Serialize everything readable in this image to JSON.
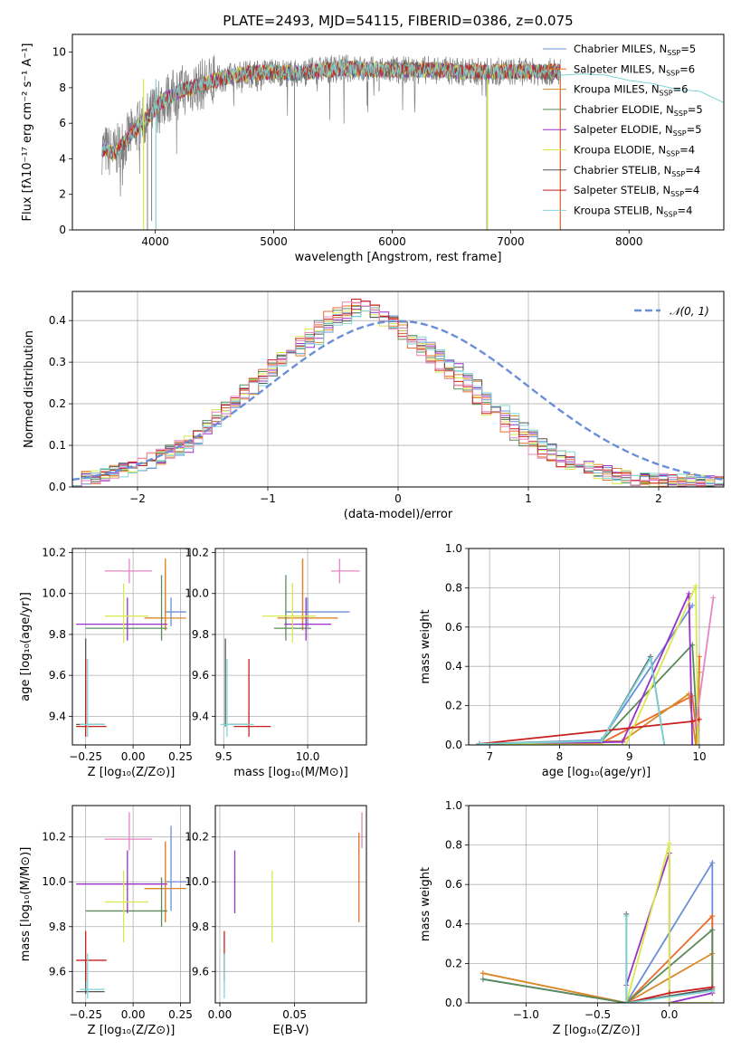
{
  "title": "PLATE=2493, MJD=54115, FIBERID=0386, z=0.075",
  "colors": {
    "chabrier_miles": "#6a8fd8",
    "salpeter_miles": "#e86c2a",
    "kroupa_miles": "#d98a2b",
    "chabrier_elodie": "#5b8a5b",
    "salpeter_elodie": "#9b30c8",
    "kroupa_elodie": "#d9e84a",
    "chabrier_stelib": "#555555",
    "salpeter_stelib": "#c81e1e",
    "kroupa_stelib": "#7fd6d6",
    "data_gray": "#808080",
    "pink": "#e586c0",
    "normal_curve": "#6a8fd8",
    "grid": "#b0b0b0"
  },
  "chart_data": [
    {
      "id": "spectrum",
      "type": "line",
      "xlabel": "wavelength [Angstrom, rest frame]",
      "ylabel": "Flux [fλ10⁻¹⁷ erg cm⁻² s⁻¹ A⁻¹]",
      "xlim": [
        3300,
        8800
      ],
      "ylim": [
        0,
        11
      ],
      "xticks": [
        4000,
        5000,
        6000,
        7000,
        8000
      ],
      "yticks": [
        0,
        2,
        4,
        6,
        8,
        10
      ],
      "legend_position": "top-right",
      "legend": [
        {
          "label": "Chabrier MILES, N_SSP=5",
          "color": "#6a8fd8"
        },
        {
          "label": "Salpeter MILES, N_SSP=6",
          "color": "#e86c2a"
        },
        {
          "label": "Kroupa MILES, N_SSP=6",
          "color": "#d98a2b"
        },
        {
          "label": "Chabrier ELODIE, N_SSP=5",
          "color": "#5b8a5b"
        },
        {
          "label": "Salpeter ELODIE, N_SSP=5",
          "color": "#9b30c8"
        },
        {
          "label": "Kroupa ELODIE, N_SSP=4",
          "color": "#d9e84a"
        },
        {
          "label": "Chabrier STELIB, N_SSP=4",
          "color": "#555555"
        },
        {
          "label": "Salpeter STELIB, N_SSP=4",
          "color": "#c81e1e"
        },
        {
          "label": "Kroupa STELIB, N_SSP=4",
          "color": "#7fd6d6"
        }
      ],
      "continuum": [
        [
          3550,
          4.6
        ],
        [
          3650,
          4.3
        ],
        [
          3750,
          5.0
        ],
        [
          3850,
          5.8
        ],
        [
          3950,
          6.4
        ],
        [
          4050,
          7.2
        ],
        [
          4200,
          7.8
        ],
        [
          4400,
          8.2
        ],
        [
          4600,
          8.6
        ],
        [
          4800,
          8.8
        ],
        [
          5000,
          8.9
        ],
        [
          5200,
          8.8
        ],
        [
          5400,
          9.0
        ],
        [
          5600,
          9.1
        ],
        [
          5800,
          9.0
        ],
        [
          6000,
          9.0
        ],
        [
          6200,
          9.0
        ],
        [
          6400,
          9.0
        ],
        [
          6600,
          8.9
        ],
        [
          6800,
          8.9
        ],
        [
          7000,
          8.9
        ],
        [
          7200,
          8.9
        ],
        [
          7420,
          8.9
        ]
      ],
      "kroupa_stelib_extension": [
        [
          7420,
          8.9
        ],
        [
          7600,
          8.8
        ],
        [
          7800,
          8.7
        ],
        [
          8000,
          8.5
        ],
        [
          8200,
          8.1
        ],
        [
          8400,
          7.8
        ],
        [
          8600,
          7.6
        ],
        [
          8800,
          7.2
        ]
      ],
      "absorption_lines": [
        [
          3934,
          0
        ],
        [
          3969,
          0.5
        ],
        [
          4340,
          7.6
        ],
        [
          4861,
          7.8
        ],
        [
          5175,
          0
        ],
        [
          5270,
          8.2
        ],
        [
          5890,
          7.8
        ],
        [
          6563,
          8.2
        ],
        [
          6800,
          0
        ],
        [
          7420,
          0
        ]
      ]
    },
    {
      "id": "residuals",
      "type": "histogram",
      "xlabel": "(data-model)/error",
      "ylabel": "Normed distribution",
      "xlim": [
        -2.5,
        2.5
      ],
      "ylim": [
        0,
        0.47
      ],
      "xticks": [
        -2,
        -1,
        0,
        1,
        2
      ],
      "yticks": [
        0.0,
        0.1,
        0.2,
        0.3,
        0.4
      ],
      "legend_position": "top-right",
      "normal_label": "𝒩(0, 1)",
      "bin_width": 0.1,
      "bins_from": -2.5,
      "series_values": [
        [
          0.02,
          0.022,
          0.025,
          0.03,
          0.035,
          0.04,
          0.048,
          0.055,
          0.06,
          0.07,
          0.08,
          0.09,
          0.1,
          0.12,
          0.14,
          0.16,
          0.18,
          0.2,
          0.22,
          0.24,
          0.25,
          0.28,
          0.3,
          0.31,
          0.33,
          0.35,
          0.36,
          0.38,
          0.4,
          0.41,
          0.42,
          0.43,
          0.42,
          0.41,
          0.4,
          0.38,
          0.36,
          0.35,
          0.34,
          0.32,
          0.3,
          0.28,
          0.26,
          0.24,
          0.22,
          0.2,
          0.18,
          0.16,
          0.14,
          0.12,
          0.1,
          0.09,
          0.08,
          0.07,
          0.06,
          0.05,
          0.04,
          0.035,
          0.03,
          0.025,
          0.02,
          0.02,
          0.018,
          0.016,
          0.015,
          0.014,
          0.013,
          0.012,
          0.012,
          0.011
        ],
        [
          0.018,
          0.02,
          0.026,
          0.03,
          0.036,
          0.044,
          0.05,
          0.058,
          0.07,
          0.078,
          0.085,
          0.1,
          0.11,
          0.125,
          0.15,
          0.17,
          0.19,
          0.21,
          0.23,
          0.26,
          0.27,
          0.29,
          0.31,
          0.33,
          0.35,
          0.37,
          0.39,
          0.41,
          0.42,
          0.43,
          0.44,
          0.43,
          0.42,
          0.4,
          0.39,
          0.37,
          0.35,
          0.33,
          0.31,
          0.29,
          0.27,
          0.25,
          0.23,
          0.21,
          0.19,
          0.17,
          0.15,
          0.13,
          0.11,
          0.095,
          0.085,
          0.075,
          0.065,
          0.055,
          0.045,
          0.04,
          0.034,
          0.03,
          0.025,
          0.022,
          0.02,
          0.018,
          0.016,
          0.015,
          0.014,
          0.013,
          0.012,
          0.011,
          0.011,
          0.01
        ]
      ]
    },
    {
      "id": "age_vs_Z",
      "type": "scatter",
      "xlabel": "Z [log₁₀(Z/Z⊙)]",
      "ylabel": "age  [log₁₀(age/yr)]",
      "xlim": [
        -0.32,
        0.3
      ],
      "ylim": [
        9.26,
        10.22
      ],
      "xticks": [
        -0.25,
        0.0,
        0.25
      ],
      "yticks": [
        9.4,
        9.6,
        9.8,
        10.0,
        10.2
      ]
    },
    {
      "id": "age_vs_mass",
      "type": "scatter",
      "xlabel": "mass [log₁₀(M/M⊙)]",
      "xlim": [
        9.45,
        10.35
      ],
      "ylim": [
        9.26,
        10.22
      ],
      "xticks": [
        9.5,
        10.0
      ],
      "yticks": [
        9.4,
        9.6,
        9.8,
        10.0,
        10.2
      ]
    },
    {
      "id": "weight_vs_age",
      "type": "line",
      "xlabel": "age  [log₁₀(age/yr)]",
      "ylabel": "mass weight",
      "xlim": [
        6.7,
        10.35
      ],
      "ylim": [
        0,
        1.0
      ],
      "xticks": [
        7,
        8,
        9,
        10
      ],
      "yticks": [
        0.0,
        0.2,
        0.4,
        0.6,
        0.8,
        1.0
      ]
    },
    {
      "id": "mass_vs_Z",
      "type": "scatter",
      "xlabel": "Z [log₁₀(Z/Z⊙)]",
      "ylabel": "mass [log₁₀(M/M⊙)]",
      "xlim": [
        -0.32,
        0.3
      ],
      "ylim": [
        9.46,
        10.34
      ],
      "xticks": [
        -0.25,
        0.0,
        0.25
      ],
      "yticks": [
        9.6,
        9.8,
        10.0,
        10.2
      ]
    },
    {
      "id": "mass_vs_ebv",
      "type": "scatter",
      "xlabel": "E(B-V)",
      "xlim": [
        -0.003,
        0.098
      ],
      "ylim": [
        9.46,
        10.34
      ],
      "xticks": [
        0.0,
        0.05
      ],
      "yticks": [
        9.6,
        9.8,
        10.0,
        10.2
      ]
    },
    {
      "id": "weight_vs_Z",
      "type": "line",
      "xlabel": "Z [log₁₀(Z/Z⊙)]",
      "ylabel": "mass weight",
      "xlim": [
        -1.4,
        0.38
      ],
      "ylim": [
        0,
        1.0
      ],
      "xticks": [
        -1.0,
        -0.5,
        0.0
      ],
      "yticks": [
        0.0,
        0.2,
        0.4,
        0.6,
        0.8,
        1.0
      ]
    }
  ],
  "ssp_models": [
    {
      "name": "chabrier_miles",
      "Z": 0.2,
      "Zerr": [
        0.17,
        0.28
      ],
      "age": 9.91,
      "ageErr": [
        9.84,
        9.98
      ],
      "mass": 10.0,
      "massErr": [
        9.87,
        10.25
      ],
      "ebv": null,
      "age_weights": [
        [
          6.85,
          0.005
        ],
        [
          8.6,
          0.025
        ],
        [
          9.9,
          0.71
        ]
      ],
      "Z_weights": [
        [
          -1.3,
          0.12
        ],
        [
          -0.3,
          0.0
        ],
        [
          0.3,
          0.71
        ],
        [
          0.3,
          0.06
        ]
      ]
    },
    {
      "name": "salpeter_miles",
      "Z": 0.17,
      "Zerr": [
        0.06,
        0.17
      ],
      "age": 9.88,
      "ageErr": [
        9.82,
        10.17
      ],
      "mass": 9.97,
      "massErr": [
        9.82,
        10.18
      ],
      "ebv": 0.093,
      "ebvErr": [
        9.82,
        10.22
      ],
      "age_weights": [
        [
          6.85,
          0.005
        ],
        [
          8.6,
          0.01
        ],
        [
          9.9,
          0.25
        ],
        [
          9.98,
          0.0
        ],
        [
          10.0,
          0.45
        ]
      ],
      "Z_weights": [
        [
          -1.3,
          0.15
        ],
        [
          -0.3,
          0.0
        ],
        [
          0.3,
          0.44
        ],
        [
          0.3,
          0.05
        ]
      ]
    },
    {
      "name": "kroupa_miles",
      "Z": 0.17,
      "Zerr": [
        0.06,
        0.28
      ],
      "age": 9.88,
      "ageErr": [
        9.82,
        10.17
      ],
      "mass": 9.97,
      "massErr": [
        9.82,
        10.15
      ],
      "ebv": null,
      "age_weights": [
        [
          6.85,
          0.005
        ],
        [
          8.9,
          0.02
        ],
        [
          9.85,
          0.26
        ],
        [
          9.95,
          0.0
        ],
        [
          10.0,
          0.37
        ]
      ],
      "Z_weights": [
        [
          -1.3,
          0.15
        ],
        [
          -0.3,
          0.0
        ],
        [
          0.3,
          0.25
        ],
        [
          0.3,
          0.05
        ]
      ]
    },
    {
      "name": "chabrier_elodie",
      "Z": 0.15,
      "Zerr": [
        -0.25,
        0.18
      ],
      "age": 9.83,
      "ageErr": [
        9.77,
        10.09
      ],
      "mass": 9.87,
      "massErr": [
        9.8,
        10.02
      ],
      "ebv": null,
      "age_weights": [
        [
          6.85,
          0.005
        ],
        [
          8.6,
          0.02
        ],
        [
          9.9,
          0.51
        ],
        [
          9.98,
          0.0
        ]
      ],
      "Z_weights": [
        [
          -1.3,
          0.12
        ],
        [
          -0.3,
          0.0
        ],
        [
          0.3,
          0.37
        ],
        [
          0.3,
          0.06
        ]
      ]
    },
    {
      "name": "salpeter_elodie",
      "Z": -0.03,
      "Zerr": [
        -0.3,
        0.18
      ],
      "age": 9.85,
      "ageErr": [
        9.77,
        9.98
      ],
      "mass": 9.99,
      "massErr": [
        9.86,
        10.14
      ],
      "ebv": 0.01,
      "ebvErr": [
        9.86,
        10.14
      ],
      "age_weights": [
        [
          6.85,
          0.005
        ],
        [
          8.9,
          0.015
        ],
        [
          9.85,
          0.77
        ],
        [
          9.9,
          0.0
        ]
      ],
      "Z_weights": [
        [
          -0.3,
          0.09
        ],
        [
          0.0,
          0.76
        ],
        [
          0.0,
          0.0
        ],
        [
          0.3,
          0.05
        ]
      ]
    },
    {
      "name": "kroupa_elodie",
      "Z": -0.05,
      "Zerr": [
        -0.15,
        0.08
      ],
      "age": 9.89,
      "ageErr": [
        9.76,
        10.05
      ],
      "mass": 9.91,
      "massErr": [
        9.73,
        10.05
      ],
      "ebv": 0.035,
      "ebvErr": [
        9.73,
        10.05
      ],
      "age_weights": [
        [
          6.85,
          0.005
        ],
        [
          8.95,
          0.0
        ],
        [
          9.95,
          0.81
        ],
        [
          9.98,
          0.0
        ]
      ],
      "Z_weights": [
        [
          -0.3,
          0.0
        ],
        [
          0.0,
          0.81
        ],
        [
          0.0,
          0.0
        ],
        [
          0.3,
          0.0
        ]
      ]
    },
    {
      "name": "chabrier_stelib",
      "Z": -0.25,
      "Zerr": [
        -0.3,
        -0.15
      ],
      "age": 9.36,
      "ageErr": [
        9.35,
        9.78
      ],
      "mass": 9.51,
      "massErr": [
        9.5,
        9.65
      ],
      "ebv": null,
      "age_weights": [
        [
          6.85,
          0.005
        ],
        [
          8.6,
          0.02
        ],
        [
          9.3,
          0.45
        ],
        [
          9.5,
          0.0
        ]
      ],
      "Z_weights": [
        [
          -0.3,
          0.45
        ],
        [
          -0.3,
          0.0
        ],
        [
          0.3,
          0.07
        ]
      ]
    },
    {
      "name": "salpeter_stelib",
      "Z": -0.25,
      "Zerr": [
        -0.3,
        -0.14
      ],
      "age": 9.35,
      "ageErr": [
        9.3,
        9.68
      ],
      "mass": 9.65,
      "massErr": [
        9.56,
        9.78
      ],
      "ebv": 0.003,
      "ebvErr": [
        9.56,
        9.78
      ],
      "age_weights": [
        [
          6.85,
          0.005
        ],
        [
          9.9,
          0.12
        ],
        [
          10.0,
          0.13
        ]
      ],
      "Z_weights": [
        [
          -0.3,
          0.0
        ],
        [
          0.0,
          0.05
        ],
        [
          0.3,
          0.08
        ]
      ]
    },
    {
      "name": "kroupa_stelib",
      "Z": -0.24,
      "Zerr": [
        -0.28,
        -0.15
      ],
      "age": 9.36,
      "ageErr": [
        9.3,
        9.68
      ],
      "mass": 9.52,
      "massErr": [
        9.48,
        9.68
      ],
      "ebv": 0.003,
      "ebvErr": [
        9.48,
        9.68
      ],
      "age_weights": [
        [
          6.85,
          0.005
        ],
        [
          8.6,
          0.02
        ],
        [
          9.3,
          0.44
        ],
        [
          9.5,
          0.0
        ]
      ],
      "Z_weights": [
        [
          -0.3,
          0.44
        ],
        [
          -0.3,
          0.0
        ],
        [
          0.3,
          0.06
        ]
      ]
    },
    {
      "name": "pink",
      "Z": -0.02,
      "Zerr": [
        -0.15,
        0.1
      ],
      "age": 10.11,
      "ageErr": [
        10.05,
        10.17
      ],
      "mass": 10.19,
      "massErr": [
        10.14,
        10.31
      ],
      "ebv": 0.095,
      "ebvErr": [
        10.15,
        10.31
      ],
      "age_weights": [
        [
          9.95,
          0.1
        ],
        [
          10.2,
          0.75
        ]
      ],
      "Z_weights": []
    }
  ]
}
